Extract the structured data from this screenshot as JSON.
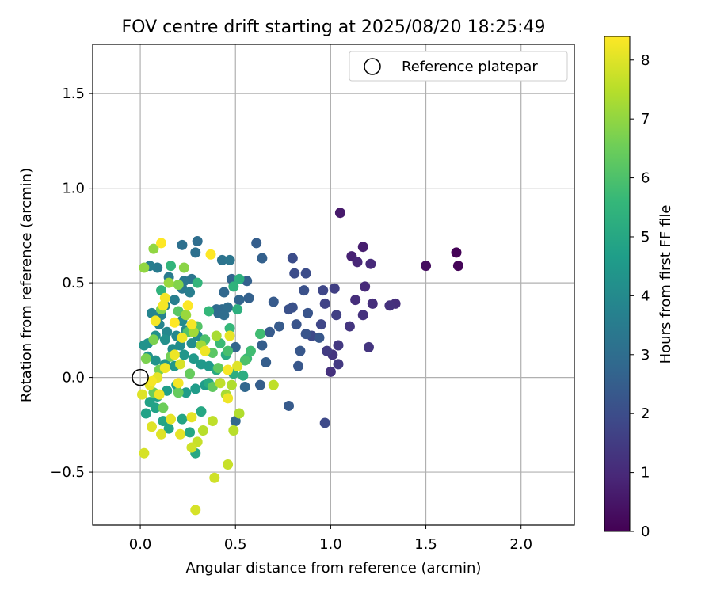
{
  "chart_data": {
    "type": "scatter",
    "title": "FOV centre drift starting at 2025/08/20 18:25:49",
    "xlabel": "Angular distance from reference (arcmin)",
    "ylabel": "Rotation from reference (arcmin)",
    "xlim": [
      -0.25,
      2.28
    ],
    "ylim": [
      -0.78,
      1.76
    ],
    "xticks": [
      0.0,
      0.5,
      1.0,
      1.5,
      2.0
    ],
    "xtick_labels": [
      "0.0",
      "0.5",
      "1.0",
      "1.5",
      "2.0"
    ],
    "yticks": [
      -0.5,
      0.0,
      0.5,
      1.0,
      1.5
    ],
    "ytick_labels": [
      "−0.5",
      "0.0",
      "0.5",
      "1.0",
      "1.5"
    ],
    "grid": true,
    "legend_position": "upper-right",
    "legend": [
      {
        "label": "Reference platepar",
        "marker": "open-circle"
      }
    ],
    "reference_point": {
      "x": 0.0,
      "y": 0.0
    },
    "colorbar": {
      "label": "Hours from first FF file",
      "min": 0,
      "max": 8.4,
      "ticks": [
        0,
        1,
        2,
        3,
        4,
        5,
        6,
        7,
        8
      ],
      "tick_labels": [
        "0",
        "1",
        "2",
        "3",
        "4",
        "5",
        "6",
        "7",
        "8"
      ],
      "colormap": "viridis",
      "colors": [
        "#440154",
        "#482878",
        "#3e4989",
        "#31688e",
        "#26828e",
        "#1f9e89",
        "#35b779",
        "#6ece58",
        "#b5de2b",
        "#fde725"
      ]
    },
    "series": [
      {
        "points": [
          [
            1.66,
            0.66,
            0.05
          ],
          [
            1.67,
            0.59,
            0.1
          ],
          [
            1.5,
            0.59,
            0.3
          ],
          [
            1.05,
            0.87,
            0.6
          ],
          [
            1.17,
            0.69,
            0.7
          ],
          [
            1.11,
            0.64,
            0.8
          ],
          [
            1.14,
            0.61,
            0.9
          ],
          [
            1.21,
            0.6,
            1.0
          ],
          [
            1.18,
            0.48,
            1.0
          ],
          [
            1.13,
            0.41,
            1.1
          ],
          [
            1.22,
            0.39,
            1.1
          ],
          [
            1.34,
            0.39,
            1.1
          ],
          [
            1.31,
            0.38,
            1.2
          ],
          [
            1.17,
            0.33,
            1.2
          ],
          [
            1.1,
            0.27,
            1.3
          ],
          [
            1.2,
            0.16,
            1.3
          ],
          [
            1.04,
            0.17,
            1.4
          ],
          [
            1.04,
            0.07,
            1.4
          ],
          [
            1.0,
            0.03,
            1.2
          ],
          [
            1.01,
            0.12,
            1.3
          ],
          [
            0.98,
            0.14,
            1.5
          ],
          [
            1.02,
            0.47,
            1.6
          ],
          [
            1.03,
            0.33,
            1.6
          ],
          [
            0.97,
            0.39,
            1.7
          ],
          [
            0.96,
            0.46,
            1.8
          ],
          [
            0.95,
            0.28,
            1.8
          ],
          [
            0.9,
            0.22,
            1.9
          ],
          [
            0.97,
            -0.24,
            1.9
          ],
          [
            0.87,
            0.55,
            2.0
          ],
          [
            0.8,
            0.63,
            2.0
          ],
          [
            0.81,
            0.55,
            2.0
          ],
          [
            0.86,
            0.46,
            2.1
          ],
          [
            0.8,
            0.37,
            2.1
          ],
          [
            0.78,
            0.36,
            2.1
          ],
          [
            0.88,
            0.34,
            2.2
          ],
          [
            0.82,
            0.28,
            2.2
          ],
          [
            0.87,
            0.23,
            2.2
          ],
          [
            0.94,
            0.21,
            2.3
          ],
          [
            0.84,
            0.14,
            2.3
          ],
          [
            0.83,
            0.06,
            2.3
          ],
          [
            0.78,
            -0.15,
            2.4
          ],
          [
            0.73,
            0.27,
            2.4
          ],
          [
            0.68,
            0.24,
            2.4
          ],
          [
            0.7,
            0.4,
            2.4
          ],
          [
            0.64,
            0.17,
            2.5
          ],
          [
            0.66,
            0.08,
            2.5
          ],
          [
            0.63,
            -0.04,
            2.5
          ],
          [
            0.61,
            0.71,
            2.5
          ],
          [
            0.64,
            0.63,
            2.6
          ],
          [
            0.56,
            0.51,
            2.6
          ],
          [
            0.57,
            0.42,
            2.6
          ],
          [
            0.48,
            0.52,
            2.7
          ],
          [
            0.52,
            0.41,
            2.7
          ],
          [
            0.5,
            0.16,
            2.7
          ],
          [
            0.55,
            -0.05,
            2.8
          ],
          [
            0.5,
            -0.23,
            2.8
          ],
          [
            0.44,
            0.45,
            2.8
          ],
          [
            0.43,
            0.36,
            2.9
          ],
          [
            0.4,
            0.36,
            2.9
          ],
          [
            0.41,
            0.34,
            2.9
          ],
          [
            0.46,
            0.37,
            3.0
          ],
          [
            0.44,
            0.33,
            3.0
          ],
          [
            0.3,
            0.72,
            3.0
          ],
          [
            0.22,
            0.7,
            3.1
          ],
          [
            0.29,
            0.66,
            3.1
          ],
          [
            0.43,
            0.62,
            3.2
          ],
          [
            0.47,
            0.62,
            3.3
          ],
          [
            0.27,
            0.52,
            3.3
          ],
          [
            0.23,
            0.51,
            3.4
          ],
          [
            0.22,
            0.47,
            3.4
          ],
          [
            0.15,
            0.53,
            3.5
          ],
          [
            0.09,
            0.58,
            3.5
          ],
          [
            0.05,
            0.59,
            3.6
          ],
          [
            0.26,
            0.45,
            3.6
          ],
          [
            0.18,
            0.41,
            3.6
          ],
          [
            0.13,
            0.38,
            3.7
          ],
          [
            0.11,
            0.33,
            3.7
          ],
          [
            0.06,
            0.34,
            3.8
          ],
          [
            0.1,
            0.28,
            3.8
          ],
          [
            0.14,
            0.24,
            3.9
          ],
          [
            0.19,
            0.22,
            3.9
          ],
          [
            0.22,
            0.3,
            4.0
          ],
          [
            0.24,
            0.25,
            4.0
          ],
          [
            0.3,
            0.22,
            4.0
          ],
          [
            0.27,
            0.18,
            4.1
          ],
          [
            0.21,
            0.17,
            4.1
          ],
          [
            0.17,
            0.15,
            4.1
          ],
          [
            0.13,
            0.2,
            4.2
          ],
          [
            0.08,
            0.22,
            4.2
          ],
          [
            0.04,
            0.18,
            4.2
          ],
          [
            0.02,
            0.17,
            4.3
          ],
          [
            0.04,
            0.11,
            4.3
          ],
          [
            0.08,
            0.09,
            4.3
          ],
          [
            0.13,
            0.07,
            4.4
          ],
          [
            0.18,
            0.06,
            4.4
          ],
          [
            0.23,
            0.12,
            4.4
          ],
          [
            0.28,
            0.1,
            4.5
          ],
          [
            0.32,
            0.07,
            4.5
          ],
          [
            0.36,
            0.06,
            4.5
          ],
          [
            0.34,
            -0.04,
            4.6
          ],
          [
            0.29,
            -0.06,
            4.6
          ],
          [
            0.24,
            -0.08,
            4.6
          ],
          [
            0.19,
            -0.04,
            4.7
          ],
          [
            0.14,
            -0.07,
            4.7
          ],
          [
            0.09,
            -0.1,
            4.7
          ],
          [
            0.05,
            -0.13,
            4.8
          ],
          [
            0.03,
            -0.19,
            4.8
          ],
          [
            0.08,
            -0.16,
            4.8
          ],
          [
            0.12,
            -0.23,
            4.9
          ],
          [
            0.15,
            -0.27,
            4.9
          ],
          [
            0.22,
            -0.22,
            4.9
          ],
          [
            0.26,
            -0.29,
            5.0
          ],
          [
            0.29,
            -0.4,
            5.0
          ],
          [
            0.32,
            -0.18,
            5.0
          ],
          [
            0.36,
            -0.03,
            5.1
          ],
          [
            0.4,
            0.04,
            5.1
          ],
          [
            0.45,
            0.12,
            5.1
          ],
          [
            0.49,
            0.02,
            5.2
          ],
          [
            0.54,
            0.01,
            5.2
          ],
          [
            0.51,
            0.36,
            5.3
          ],
          [
            0.52,
            0.52,
            5.3
          ],
          [
            0.49,
            0.48,
            5.4
          ],
          [
            0.11,
            0.46,
            5.4
          ],
          [
            0.16,
            0.59,
            5.5
          ],
          [
            0.3,
            0.5,
            5.5
          ],
          [
            0.36,
            0.35,
            5.6
          ],
          [
            0.47,
            0.26,
            5.6
          ],
          [
            0.42,
            0.18,
            5.7
          ],
          [
            0.56,
            0.1,
            5.7
          ],
          [
            0.58,
            0.14,
            5.8
          ],
          [
            0.63,
            0.23,
            5.8
          ],
          [
            0.46,
            0.14,
            5.9
          ],
          [
            0.55,
            0.09,
            6.0
          ],
          [
            0.34,
            0.2,
            6.0
          ],
          [
            0.25,
            0.24,
            6.1
          ],
          [
            0.3,
            0.27,
            6.1
          ],
          [
            0.2,
            0.35,
            6.2
          ],
          [
            0.38,
            0.13,
            6.2
          ],
          [
            0.41,
            0.05,
            6.3
          ],
          [
            0.38,
            -0.05,
            6.3
          ],
          [
            0.26,
            0.02,
            6.4
          ],
          [
            0.2,
            -0.08,
            6.4
          ],
          [
            0.12,
            -0.16,
            6.5
          ],
          [
            0.07,
            -0.08,
            6.5
          ],
          [
            0.1,
            0.04,
            6.6
          ],
          [
            0.16,
            0.11,
            6.6
          ],
          [
            0.03,
            0.1,
            6.7
          ],
          [
            0.07,
            0.2,
            6.7
          ],
          [
            0.11,
            0.36,
            6.8
          ],
          [
            0.2,
            0.49,
            6.8
          ],
          [
            0.23,
            0.58,
            6.9
          ],
          [
            0.02,
            0.58,
            7.0
          ],
          [
            0.07,
            0.68,
            7.0
          ],
          [
            0.15,
            0.5,
            7.1
          ],
          [
            0.24,
            0.33,
            7.1
          ],
          [
            0.28,
            0.24,
            7.2
          ],
          [
            0.32,
            0.17,
            7.2
          ],
          [
            0.4,
            0.22,
            7.3
          ],
          [
            0.45,
            -0.09,
            7.3
          ],
          [
            0.48,
            -0.04,
            7.4
          ],
          [
            0.52,
            -0.19,
            7.4
          ],
          [
            0.49,
            -0.28,
            7.5
          ],
          [
            0.33,
            -0.28,
            7.5
          ],
          [
            0.38,
            -0.23,
            7.6
          ],
          [
            0.42,
            -0.03,
            7.6
          ],
          [
            0.7,
            -0.04,
            7.6
          ],
          [
            0.46,
            -0.46,
            7.7
          ],
          [
            0.3,
            -0.34,
            7.7
          ],
          [
            0.27,
            -0.37,
            7.8
          ],
          [
            0.39,
            -0.53,
            7.8
          ],
          [
            0.29,
            -0.7,
            7.9
          ],
          [
            0.02,
            -0.4,
            7.9
          ],
          [
            0.06,
            -0.26,
            8.0
          ],
          [
            0.11,
            -0.3,
            8.0
          ],
          [
            0.16,
            -0.22,
            8.1
          ],
          [
            0.21,
            -0.3,
            8.1
          ],
          [
            0.01,
            -0.09,
            8.0
          ],
          [
            0.05,
            -0.04,
            8.1
          ],
          [
            0.09,
            0.0,
            8.1
          ],
          [
            0.13,
            0.05,
            8.2
          ],
          [
            0.18,
            0.12,
            8.2
          ],
          [
            0.22,
            0.21,
            8.2
          ],
          [
            0.27,
            0.28,
            8.3
          ],
          [
            0.12,
            0.38,
            8.3
          ],
          [
            0.08,
            0.3,
            8.3
          ],
          [
            0.13,
            0.42,
            8.3
          ],
          [
            0.18,
            0.29,
            8.4
          ],
          [
            0.25,
            0.38,
            8.4
          ],
          [
            0.37,
            0.65,
            8.4
          ],
          [
            0.11,
            0.71,
            8.4
          ],
          [
            0.46,
            0.04,
            8.3
          ],
          [
            0.46,
            -0.11,
            8.2
          ],
          [
            0.27,
            -0.21,
            8.1
          ],
          [
            0.1,
            -0.09,
            8.2
          ],
          [
            0.06,
            -0.02,
            8.3
          ],
          [
            0.2,
            -0.03,
            8.3
          ],
          [
            0.34,
            0.14,
            8.2
          ],
          [
            0.47,
            0.22,
            8.1
          ],
          [
            0.51,
            0.06,
            8.0
          ],
          [
            0.21,
            0.07,
            7.9
          ]
        ]
      }
    ]
  }
}
